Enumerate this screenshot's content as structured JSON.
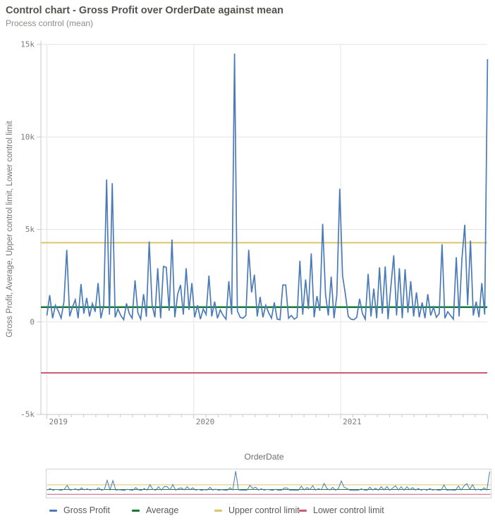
{
  "header": {
    "title": "Control chart - Gross Profit over OrderDate against mean",
    "subtitle": "Process control (mean)"
  },
  "chart_data": {
    "type": "line",
    "title": "Control chart - Gross Profit over OrderDate against mean",
    "subtitle": "Process control (mean)",
    "xlabel": "OrderDate",
    "ylabel": "Gross Profit, Average, Upper control limit, Lower control limit",
    "x_unit": "week",
    "x_span_years": 3,
    "ylim": [
      -5000,
      15000
    ],
    "grid": true,
    "legend_position": "bottom",
    "yticks": [
      {
        "value": 15000,
        "label": "15k"
      },
      {
        "value": 10000,
        "label": "10k"
      },
      {
        "value": 5000,
        "label": "5k"
      },
      {
        "value": 0,
        "label": "0"
      },
      {
        "value": -5000,
        "label": "-5k"
      }
    ],
    "xticks": [
      {
        "year": 0,
        "label": "2019"
      },
      {
        "year": 1,
        "label": "2020"
      },
      {
        "year": 2,
        "label": "2021"
      }
    ],
    "series": [
      {
        "name": "Gross Profit",
        "type": "line",
        "color": "#4a7ab7",
        "values": [
          350,
          1450,
          200,
          900,
          600,
          200,
          1100,
          3900,
          300,
          800,
          1200,
          200,
          2050,
          450,
          1300,
          300,
          1000,
          550,
          2100,
          200,
          900,
          7700,
          400,
          7500,
          250,
          700,
          350,
          120,
          1000,
          450,
          200,
          2250,
          500,
          150,
          1500,
          280,
          4350,
          900,
          250,
          2900,
          200,
          3000,
          2950,
          600,
          4450,
          250,
          1500,
          2000,
          400,
          2900,
          650,
          2100,
          250,
          900,
          150,
          700,
          400,
          2500,
          300,
          1100,
          200,
          650,
          350,
          150,
          2200,
          400,
          14500,
          600,
          250,
          200,
          350,
          3900,
          1600,
          2550,
          300,
          1350,
          250,
          900,
          500,
          200,
          1050,
          150,
          120,
          2000,
          2000,
          200,
          350,
          150,
          250,
          3300,
          400,
          2300,
          700,
          3700,
          250,
          1400,
          600,
          5300,
          1500,
          350,
          2450,
          200,
          1450,
          7200,
          2500,
          1500,
          300,
          150,
          120,
          250,
          1250,
          450,
          150,
          2600,
          300,
          1800,
          200,
          2950,
          450,
          3000,
          150,
          1900,
          3600,
          350,
          2900,
          200,
          2850,
          500,
          2200,
          300,
          1600,
          250,
          1050,
          200,
          1500,
          350,
          800,
          250,
          450,
          4200,
          200,
          550,
          350,
          150,
          3500,
          300,
          3400,
          5250,
          900,
          4400,
          350,
          1100,
          250,
          2100,
          400,
          14200
        ]
      },
      {
        "name": "Average",
        "type": "hline",
        "color": "#177a33",
        "value": 800
      },
      {
        "name": "Upper control limit",
        "type": "hline",
        "color": "#dcc46e",
        "value": 4280
      },
      {
        "name": "Lower control limit",
        "type": "hline",
        "color": "#c95c72",
        "value": -2750
      }
    ]
  },
  "legend": {
    "items": [
      {
        "label": "Gross Profit",
        "color": "#4a7ab7"
      },
      {
        "label": "Average",
        "color": "#177a33"
      },
      {
        "label": "Upper control limit",
        "color": "#dcc46e"
      },
      {
        "label": "Lower control limit",
        "color": "#c95c72"
      }
    ]
  }
}
